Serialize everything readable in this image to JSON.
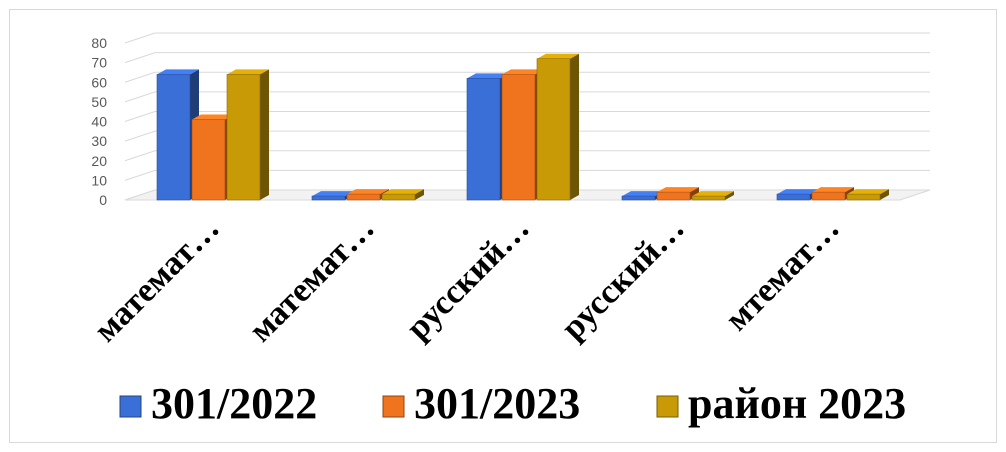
{
  "chart_data": {
    "type": "bar",
    "categories": [
      "математ…",
      "математ…",
      "русский…",
      "русский…",
      "мтемат…"
    ],
    "series": [
      {
        "name": "301/2022",
        "color": "#3a6fd8",
        "values": [
          64,
          2,
          62,
          2,
          3
        ]
      },
      {
        "name": "301/2023",
        "color": "#f0731e",
        "values": [
          41,
          3,
          64,
          4,
          4
        ]
      },
      {
        "name": "район 2023",
        "color": "#c89a06",
        "values": [
          64,
          3,
          72,
          2,
          3
        ]
      }
    ],
    "ylim": [
      0,
      80
    ],
    "yticks": [
      0,
      10,
      20,
      30,
      40,
      50,
      60,
      70,
      80
    ],
    "grid": true,
    "legend": "bottom",
    "style": "3d-clustered-column"
  }
}
